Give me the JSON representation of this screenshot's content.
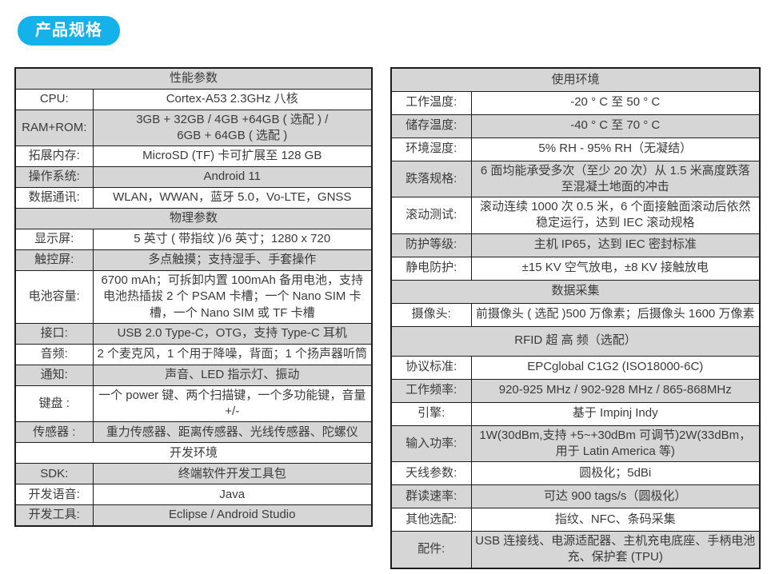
{
  "badge": {
    "label": "产品规格",
    "color": "#14b1eb"
  },
  "colors": {
    "row_gray": "#d6d6d6",
    "row_white": "#ffffff",
    "border": "#1c1c1c",
    "text": "#3b3b3b"
  },
  "left_table": {
    "rows": [
      {
        "type": "header",
        "text": "性能参数"
      },
      {
        "type": "row",
        "label": "CPU:",
        "value": "Cortex-A53 2.3GHz 八核"
      },
      {
        "type": "row",
        "label": "RAM+ROM:",
        "value": "3GB + 32GB / 4GB +64GB ( 选配 ) /\n6GB + 64GB ( 选配 )"
      },
      {
        "type": "row",
        "label": "拓展内存:",
        "value": "MicroSD (TF) 卡可扩展至 128 GB"
      },
      {
        "type": "row",
        "label": "操作系统:",
        "value": "Android 11"
      },
      {
        "type": "row",
        "label": "数据通讯:",
        "value": "WLAN，WWAN，蓝牙 5.0，Vo-LTE，GNSS"
      },
      {
        "type": "header",
        "text": "物理参数"
      },
      {
        "type": "row",
        "label": "显示屏:",
        "value": "5 英寸 ( 带指纹 )/6 英寸；1280 x 720"
      },
      {
        "type": "row",
        "label": "触控屏:",
        "value": "多点触摸；支持湿手、手套操作"
      },
      {
        "type": "row",
        "label": "电池容量:",
        "value": "6700 mAh；可拆卸内置 100mAh 备用电池，支持电池热插拔 2 个 PSAM 卡槽；一个 Nano SIM 卡槽，一个 Nano SIM 或 TF 卡槽"
      },
      {
        "type": "row",
        "label": "接口:",
        "value": "USB 2.0 Type-C，OTG，支持 Type-C 耳机"
      },
      {
        "type": "row",
        "label": "音频:",
        "value": "2 个麦克风，1 个用于降噪，背面；1 个扬声器听筒"
      },
      {
        "type": "row",
        "label": "通知:",
        "value": "声音、LED 指示灯、振动"
      },
      {
        "type": "row",
        "label": "键盘 :",
        "value": "一个 power 键、两个扫描键，一个多功能键，音量\n+/-"
      },
      {
        "type": "row",
        "label": "传感器 :",
        "value": "重力传感器、距离传感器、光线传感器、陀螺仪"
      },
      {
        "type": "header",
        "text": "开发环境"
      },
      {
        "type": "row",
        "label": "SDK:",
        "value": "终端软件开发工具包"
      },
      {
        "type": "row",
        "label": "开发语音:",
        "value": "Java"
      },
      {
        "type": "row",
        "label": "开发工具:",
        "value": "Eclipse / Android Studio"
      }
    ]
  },
  "right_table": {
    "rows": [
      {
        "type": "header",
        "text": "使用环境"
      },
      {
        "type": "row",
        "label": "工作温度:",
        "value": "-20 ° C 至 50 ° C"
      },
      {
        "type": "row",
        "label": "储存温度:",
        "value": "-40 ° C 至 70 ° C"
      },
      {
        "type": "row",
        "label": "环境湿度:",
        "value": "5% RH - 95% RH（无凝结）"
      },
      {
        "type": "row",
        "label": "跌落规格:",
        "value": "6 面均能承受多次（至少 20 次）从 1.5 米高度跌落至混凝土地面的冲击"
      },
      {
        "type": "row",
        "label": "滚动测试:",
        "value": "滚动连续 1000 次 0.5 米，6 个面接触面滚动后依然稳定运行，达到 IEC 滚动规格"
      },
      {
        "type": "row",
        "label": "防护等级:",
        "value": "主机 IP65，达到 IEC 密封标准"
      },
      {
        "type": "row",
        "label": "静电防护:",
        "value": "±15 KV 空气放电，±8 KV 接触放电"
      },
      {
        "type": "header",
        "text": "数据采集"
      },
      {
        "type": "row",
        "label": "摄像头:",
        "value": "前摄像头 ( 选配 )500 万像素；后摄像头 1600 万像素"
      },
      {
        "type": "header",
        "text": "RFID 超 高 频（选配）"
      },
      {
        "type": "row",
        "label": "协议标准:",
        "value": "EPCglobal C1G2 (ISO18000-6C)"
      },
      {
        "type": "row",
        "label": "工作频率:",
        "value": "920-925 MHz / 902-928 MHz / 865-868MHz"
      },
      {
        "type": "row",
        "label": "引擎:",
        "value": "基于 Impinj Indy"
      },
      {
        "type": "row",
        "label": "输入功率:",
        "value": "1W(30dBm,支持 +5~+30dBm 可调节)2W(33dBm，用于 Latin America 等)"
      },
      {
        "type": "row",
        "label": "天线参数:",
        "value": "圆极化；5dBi"
      },
      {
        "type": "row",
        "label": "群读速率:",
        "value": "可达 900 tags/s（圆极化）"
      },
      {
        "type": "row",
        "label": "其他选配:",
        "value": "指纹、NFC、条码采集"
      },
      {
        "type": "row",
        "label": "配件:",
        "value": "USB 连接线、电源适配器、主机充电底座、手柄电池充、保护套 (TPU)"
      }
    ]
  }
}
